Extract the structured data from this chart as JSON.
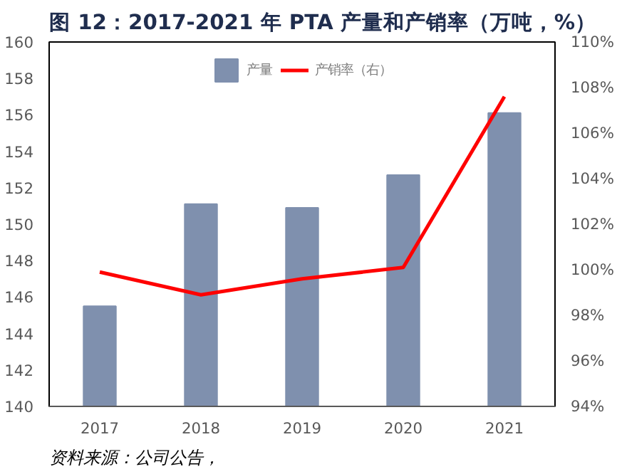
{
  "chart_data": {
    "type": "bar",
    "title": "图 12：2017-2021 年 PTA 产量和产销率（万吨，%）",
    "categories": [
      "2017",
      "2018",
      "2019",
      "2020",
      "2021"
    ],
    "series": [
      {
        "name": "产量",
        "color": "#7f90ae",
        "values": [
          145.5,
          151.1,
          150.9,
          152.7,
          156.1
        ]
      },
      {
        "name": "产销率（右）",
        "type": "line",
        "axis": "y2",
        "color": "#ff0000",
        "values": [
          99.9,
          98.9,
          99.6,
          100.1,
          107.6
        ]
      }
    ],
    "ylim": [
      140,
      160
    ],
    "yticks": [
      140,
      142,
      144,
      146,
      148,
      150,
      152,
      154,
      156,
      158,
      160
    ],
    "y2lim": [
      94,
      110
    ],
    "y2ticks": [
      {
        "value": 94,
        "label": "94%"
      },
      {
        "value": 96,
        "label": "96%"
      },
      {
        "value": 98,
        "label": "98%"
      },
      {
        "value": 100,
        "label": "100%"
      },
      {
        "value": 102,
        "label": "102%"
      },
      {
        "value": 104,
        "label": "104%"
      },
      {
        "value": 106,
        "label": "106%"
      },
      {
        "value": 108,
        "label": "108%"
      },
      {
        "value": 110,
        "label": "110%"
      }
    ],
    "legend": "top",
    "grid": false,
    "annotations": [
      "资料来源：公司公告，"
    ]
  }
}
